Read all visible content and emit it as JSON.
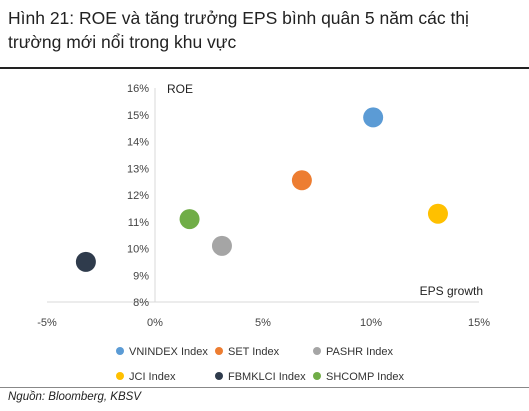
{
  "figure": {
    "title": "Hình 21: ROE và tăng trưởng EPS bình quân 5 năm các thị trường mới nổi trong khu vực",
    "source": "Nguồn: Bloomberg, KBSV"
  },
  "chart_data": {
    "type": "scatter",
    "title": "Hình 21: ROE và tăng trưởng EPS bình quân 5 năm các thị trường mới nổi trong khu vực",
    "xlabel": "EPS growth",
    "ylabel": "ROE",
    "xlim": [
      -5,
      15
    ],
    "ylim": [
      8,
      16
    ],
    "x_ticks": [
      "-5%",
      "0%",
      "5%",
      "10%",
      "15%"
    ],
    "y_ticks": [
      "8%",
      "9%",
      "10%",
      "11%",
      "12%",
      "13%",
      "14%",
      "15%",
      "16%"
    ],
    "grid": false,
    "legend_position": "bottom",
    "series": [
      {
        "name": "VNINDEX Index",
        "color": "#5B9BD5",
        "x": 10.1,
        "y": 14.9
      },
      {
        "name": "SET Index",
        "color": "#ED7D31",
        "x": 6.8,
        "y": 12.55
      },
      {
        "name": "PASHR Index",
        "color": "#A5A5A5",
        "x": 3.1,
        "y": 10.1
      },
      {
        "name": "JCI Index",
        "color": "#FFC000",
        "x": 13.1,
        "y": 11.3
      },
      {
        "name": "FBMKLCI Index",
        "color": "#2F3B4C",
        "x": -3.2,
        "y": 9.5
      },
      {
        "name": "SHCOMP Index",
        "color": "#70AD47",
        "x": 1.6,
        "y": 11.1
      }
    ]
  }
}
